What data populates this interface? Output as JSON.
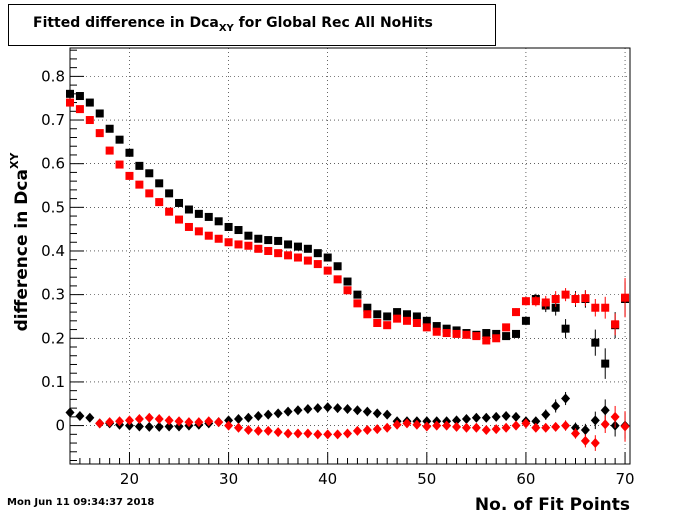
{
  "title_main": "Fitted difference in Dca",
  "title_sub": "XY",
  "title_tail": " for Global Rec All NoHits",
  "timestamp": "Mon Jun 11 09:34:37 2018",
  "chart_data": {
    "type": "scatter",
    "xlabel": "No. of Fit Points",
    "ylabel_main": "difference in Dca",
    "ylabel_sub": "XY",
    "xlim": [
      14,
      70.5
    ],
    "ylim": [
      -0.088,
      0.865
    ],
    "x_ticks": [
      20,
      30,
      40,
      50,
      60,
      70
    ],
    "y_ticks": [
      0,
      0.1,
      0.2,
      0.3,
      0.4,
      0.5,
      0.6,
      0.7,
      0.8
    ],
    "grid": true,
    "series": [
      {
        "marker": "square",
        "color": "#000000",
        "x": [
          14,
          15,
          16,
          17,
          18,
          19,
          20,
          21,
          22,
          23,
          24,
          25,
          26,
          27,
          28,
          29,
          30,
          31,
          32,
          33,
          34,
          35,
          36,
          37,
          38,
          39,
          40,
          41,
          42,
          43,
          44,
          45,
          46,
          47,
          48,
          49,
          50,
          51,
          52,
          53,
          54,
          55,
          56,
          57,
          58,
          59,
          60,
          61,
          62,
          63,
          64,
          65,
          66,
          67,
          68,
          69,
          70
        ],
        "y": [
          0.76,
          0.755,
          0.74,
          0.715,
          0.68,
          0.655,
          0.625,
          0.595,
          0.578,
          0.555,
          0.532,
          0.51,
          0.495,
          0.485,
          0.478,
          0.468,
          0.455,
          0.448,
          0.435,
          0.428,
          0.425,
          0.423,
          0.415,
          0.41,
          0.405,
          0.395,
          0.385,
          0.365,
          0.33,
          0.3,
          0.27,
          0.255,
          0.25,
          0.26,
          0.255,
          0.25,
          0.24,
          0.228,
          0.222,
          0.218,
          0.212,
          0.208,
          0.212,
          0.21,
          0.205,
          0.21,
          0.24,
          0.29,
          0.275,
          0.27,
          0.222,
          0.29,
          0.29,
          0.19,
          0.142,
          0.23,
          0.29
        ],
        "yerr": [
          0.005,
          0.005,
          0.005,
          0.005,
          0.005,
          0.005,
          0.005,
          0.005,
          0.005,
          0.005,
          0.005,
          0.005,
          0.005,
          0.005,
          0.005,
          0.005,
          0.005,
          0.005,
          0.005,
          0.005,
          0.005,
          0.005,
          0.005,
          0.005,
          0.005,
          0.005,
          0.005,
          0.006,
          0.006,
          0.006,
          0.006,
          0.006,
          0.006,
          0.006,
          0.006,
          0.006,
          0.006,
          0.006,
          0.006,
          0.006,
          0.006,
          0.006,
          0.007,
          0.007,
          0.008,
          0.009,
          0.01,
          0.012,
          0.015,
          0.018,
          0.022,
          0.018,
          0.02,
          0.03,
          0.035,
          0.03,
          0.04
        ]
      },
      {
        "marker": "square",
        "color": "#ff0000",
        "x": [
          14,
          15,
          16,
          17,
          18,
          19,
          20,
          21,
          22,
          23,
          24,
          25,
          26,
          27,
          28,
          29,
          30,
          31,
          32,
          33,
          34,
          35,
          36,
          37,
          38,
          39,
          40,
          41,
          42,
          43,
          44,
          45,
          46,
          47,
          48,
          49,
          50,
          51,
          52,
          53,
          54,
          55,
          56,
          57,
          58,
          59,
          60,
          61,
          62,
          63,
          64,
          65,
          66,
          67,
          68,
          69,
          70
        ],
        "y": [
          0.74,
          0.725,
          0.7,
          0.67,
          0.63,
          0.598,
          0.572,
          0.552,
          0.532,
          0.512,
          0.49,
          0.472,
          0.455,
          0.445,
          0.435,
          0.428,
          0.42,
          0.415,
          0.412,
          0.405,
          0.4,
          0.395,
          0.39,
          0.385,
          0.378,
          0.37,
          0.355,
          0.335,
          0.31,
          0.28,
          0.255,
          0.235,
          0.23,
          0.245,
          0.24,
          0.235,
          0.225,
          0.215,
          0.212,
          0.21,
          0.208,
          0.205,
          0.195,
          0.2,
          0.225,
          0.26,
          0.285,
          0.285,
          0.282,
          0.29,
          0.3,
          0.29,
          0.292,
          0.27,
          0.27,
          0.232,
          0.293
        ],
        "yerr": [
          0.005,
          0.005,
          0.005,
          0.005,
          0.005,
          0.005,
          0.005,
          0.005,
          0.005,
          0.005,
          0.005,
          0.005,
          0.005,
          0.005,
          0.005,
          0.005,
          0.005,
          0.005,
          0.005,
          0.005,
          0.005,
          0.005,
          0.005,
          0.005,
          0.005,
          0.005,
          0.005,
          0.006,
          0.006,
          0.006,
          0.006,
          0.006,
          0.006,
          0.006,
          0.006,
          0.006,
          0.006,
          0.006,
          0.006,
          0.006,
          0.006,
          0.006,
          0.007,
          0.007,
          0.008,
          0.009,
          0.01,
          0.012,
          0.015,
          0.018,
          0.015,
          0.015,
          0.018,
          0.02,
          0.025,
          0.025,
          0.045
        ]
      },
      {
        "marker": "diamond",
        "color": "#000000",
        "x": [
          14,
          15,
          16,
          17,
          18,
          19,
          20,
          21,
          22,
          23,
          24,
          25,
          26,
          27,
          28,
          29,
          30,
          31,
          32,
          33,
          34,
          35,
          36,
          37,
          38,
          39,
          40,
          41,
          42,
          43,
          44,
          45,
          46,
          47,
          48,
          49,
          50,
          51,
          52,
          53,
          54,
          55,
          56,
          57,
          58,
          59,
          60,
          61,
          62,
          63,
          64,
          65,
          66,
          67,
          68,
          69,
          70
        ],
        "y": [
          0.03,
          0.022,
          0.018,
          0.005,
          0.005,
          0.002,
          0.0,
          -0.002,
          -0.003,
          -0.003,
          -0.002,
          -0.002,
          0.0,
          0.002,
          0.005,
          0.008,
          0.012,
          0.015,
          0.018,
          0.022,
          0.025,
          0.028,
          0.032,
          0.035,
          0.038,
          0.04,
          0.042,
          0.04,
          0.038,
          0.035,
          0.032,
          0.028,
          0.025,
          0.01,
          0.01,
          0.01,
          0.01,
          0.01,
          0.01,
          0.012,
          0.015,
          0.018,
          0.018,
          0.02,
          0.022,
          0.02,
          0.01,
          0.01,
          0.025,
          0.045,
          0.062,
          -0.005,
          -0.01,
          0.012,
          0.035,
          0.0,
          0.0
        ],
        "yerr": [
          0.005,
          0.003,
          0.003,
          0.003,
          0.003,
          0.003,
          0.003,
          0.003,
          0.003,
          0.003,
          0.003,
          0.003,
          0.003,
          0.003,
          0.003,
          0.003,
          0.003,
          0.003,
          0.003,
          0.003,
          0.003,
          0.003,
          0.003,
          0.003,
          0.003,
          0.003,
          0.003,
          0.003,
          0.003,
          0.003,
          0.003,
          0.003,
          0.003,
          0.003,
          0.003,
          0.003,
          0.003,
          0.003,
          0.003,
          0.003,
          0.003,
          0.003,
          0.004,
          0.004,
          0.005,
          0.006,
          0.008,
          0.01,
          0.012,
          0.015,
          0.015,
          0.012,
          0.014,
          0.02,
          0.025,
          0.025,
          0.03
        ]
      },
      {
        "marker": "diamond",
        "color": "#ff0000",
        "x": [
          17,
          18,
          19,
          20,
          21,
          22,
          23,
          24,
          25,
          26,
          27,
          28,
          29,
          30,
          31,
          32,
          33,
          34,
          35,
          36,
          37,
          38,
          39,
          40,
          41,
          42,
          43,
          44,
          45,
          46,
          47,
          48,
          49,
          50,
          51,
          52,
          53,
          54,
          55,
          56,
          57,
          58,
          59,
          60,
          61,
          62,
          63,
          64,
          65,
          66,
          67,
          68,
          69,
          70
        ],
        "y": [
          0.005,
          0.008,
          0.01,
          0.012,
          0.015,
          0.018,
          0.015,
          0.012,
          0.01,
          0.008,
          0.008,
          0.01,
          0.008,
          0.0,
          -0.005,
          -0.01,
          -0.012,
          -0.012,
          -0.015,
          -0.018,
          -0.018,
          -0.018,
          -0.02,
          -0.02,
          -0.02,
          -0.018,
          -0.012,
          -0.01,
          -0.008,
          -0.005,
          0.002,
          0.005,
          0.002,
          -0.002,
          0.0,
          0.0,
          -0.003,
          -0.005,
          -0.005,
          -0.01,
          -0.008,
          -0.005,
          0.0,
          0.005,
          -0.005,
          -0.005,
          -0.003,
          0.0,
          -0.018,
          -0.035,
          -0.04,
          0.003,
          0.02,
          -0.002
        ],
        "yerr": [
          0.003,
          0.003,
          0.003,
          0.003,
          0.003,
          0.003,
          0.003,
          0.003,
          0.003,
          0.003,
          0.003,
          0.003,
          0.003,
          0.003,
          0.003,
          0.003,
          0.003,
          0.003,
          0.003,
          0.003,
          0.003,
          0.003,
          0.003,
          0.003,
          0.003,
          0.003,
          0.003,
          0.003,
          0.003,
          0.003,
          0.003,
          0.003,
          0.003,
          0.003,
          0.003,
          0.003,
          0.003,
          0.003,
          0.004,
          0.004,
          0.004,
          0.005,
          0.006,
          0.007,
          0.008,
          0.009,
          0.01,
          0.012,
          0.012,
          0.015,
          0.018,
          0.02,
          0.025,
          0.035
        ]
      }
    ]
  }
}
